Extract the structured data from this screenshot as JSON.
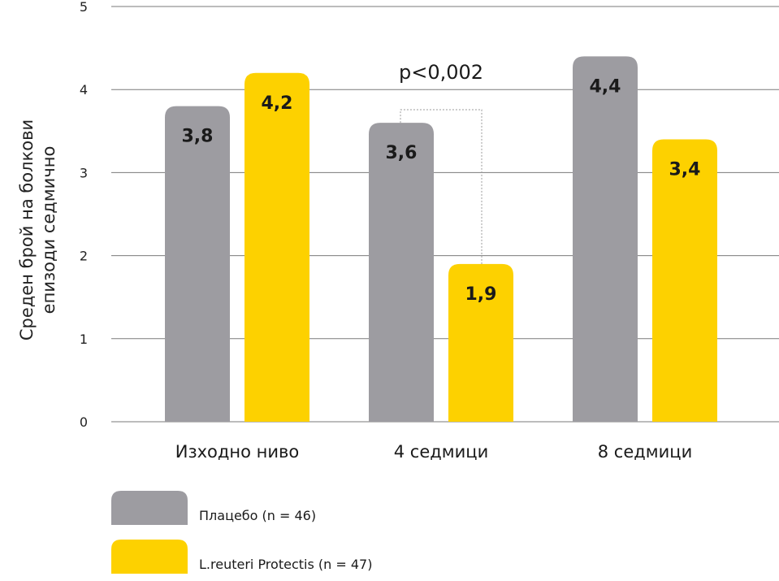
{
  "chart_data": {
    "type": "bar",
    "categories": [
      "Изходно ниво",
      "4 седмици",
      "8 седмици"
    ],
    "series": [
      {
        "name": "Плацебо  (n = 46)",
        "color": "#9d9ca1",
        "values": [
          3.8,
          3.6,
          4.4
        ],
        "value_labels": [
          "3,8",
          "3,6",
          "4,4"
        ]
      },
      {
        "name": "L.reuteri Protectis (n = 47)",
        "color": "#fdd100",
        "values": [
          4.2,
          1.9,
          3.4
        ],
        "value_labels": [
          "4,2",
          "1,9",
          "3,4"
        ]
      }
    ],
    "ylabel_lines": [
      "Среден брой на болкови",
      "епизоди седмично"
    ],
    "ylim": [
      0,
      5
    ],
    "yticks": [
      0,
      1,
      2,
      3,
      4,
      5
    ],
    "grid": true,
    "legend_position": "bottom-left",
    "annotation": {
      "text": "p<0,002",
      "category": "4 седмици"
    }
  }
}
